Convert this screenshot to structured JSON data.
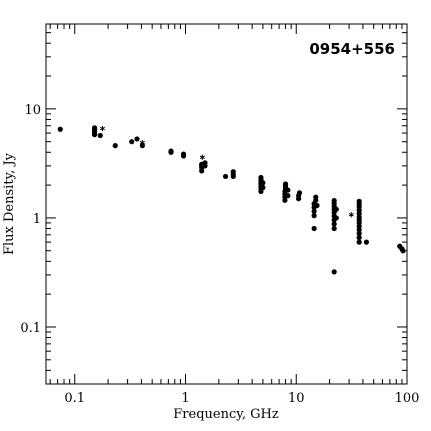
{
  "chart_data": {
    "type": "scatter",
    "title": "0954+556",
    "xlabel": "Frequency, GHz",
    "ylabel": "Flux Density, Jy",
    "xscale": "log",
    "yscale": "log",
    "xlim": [
      0.055,
      100
    ],
    "ylim": [
      0.03,
      60
    ],
    "grid": false,
    "x_tick_labels": [
      {
        "value": 0.1,
        "label": "0.1"
      },
      {
        "value": 1,
        "label": "1"
      },
      {
        "value": 10,
        "label": "10"
      },
      {
        "value": 100,
        "label": "100"
      }
    ],
    "y_tick_labels": [
      {
        "value": 0.1,
        "label": "0.1"
      },
      {
        "value": 1,
        "label": "1"
      },
      {
        "value": 10,
        "label": "10"
      }
    ],
    "series": [
      {
        "marker": "dot",
        "points": [
          [
            0.074,
            6.5
          ],
          [
            0.151,
            5.8
          ],
          [
            0.151,
            6.0
          ],
          [
            0.151,
            6.2
          ],
          [
            0.151,
            6.5
          ],
          [
            0.151,
            6.7
          ],
          [
            0.17,
            5.7
          ],
          [
            0.232,
            4.6
          ],
          [
            0.327,
            5.0
          ],
          [
            0.365,
            5.3
          ],
          [
            0.408,
            4.6
          ],
          [
            0.74,
            4.0
          ],
          [
            0.74,
            4.1
          ],
          [
            0.96,
            3.7
          ],
          [
            0.96,
            3.85
          ],
          [
            1.4,
            2.7
          ],
          [
            1.4,
            2.9
          ],
          [
            1.4,
            3.0
          ],
          [
            1.4,
            3.1
          ],
          [
            1.5,
            3.0
          ],
          [
            1.5,
            3.2
          ],
          [
            2.3,
            2.4
          ],
          [
            2.7,
            2.4
          ],
          [
            2.7,
            2.5
          ],
          [
            2.7,
            2.65
          ],
          [
            4.8,
            1.75
          ],
          [
            4.8,
            1.85
          ],
          [
            4.8,
            1.95
          ],
          [
            4.8,
            2.05
          ],
          [
            4.8,
            2.15
          ],
          [
            4.8,
            2.25
          ],
          [
            4.8,
            2.35
          ],
          [
            5.0,
            1.9
          ],
          [
            5.0,
            2.1
          ],
          [
            7.9,
            1.45
          ],
          [
            7.9,
            1.55
          ],
          [
            7.9,
            1.65
          ],
          [
            7.9,
            1.75
          ],
          [
            8.0,
            1.85
          ],
          [
            8.0,
            1.95
          ],
          [
            8.0,
            2.05
          ],
          [
            8.4,
            1.6
          ],
          [
            8.4,
            1.8
          ],
          [
            10.5,
            1.5
          ],
          [
            10.5,
            1.6
          ],
          [
            10.7,
            1.7
          ],
          [
            14.5,
            0.8
          ],
          [
            14.5,
            1.05
          ],
          [
            14.5,
            1.15
          ],
          [
            14.5,
            1.25
          ],
          [
            14.5,
            1.35
          ],
          [
            15.0,
            1.45
          ],
          [
            15.0,
            1.55
          ],
          [
            15.4,
            1.3
          ],
          [
            22.0,
            0.32
          ],
          [
            22.0,
            0.8
          ],
          [
            22.0,
            0.88
          ],
          [
            22.0,
            0.96
          ],
          [
            22.0,
            1.04
          ],
          [
            22.0,
            1.12
          ],
          [
            22.0,
            1.2
          ],
          [
            22.0,
            1.28
          ],
          [
            22.0,
            1.36
          ],
          [
            22.0,
            1.44
          ],
          [
            23.0,
            1.0
          ],
          [
            23.0,
            1.2
          ],
          [
            37.0,
            0.6
          ],
          [
            37.0,
            0.66
          ],
          [
            37.0,
            0.72
          ],
          [
            37.0,
            0.78
          ],
          [
            37.0,
            0.84
          ],
          [
            37.0,
            0.9
          ],
          [
            37.0,
            0.96
          ],
          [
            37.0,
            1.02
          ],
          [
            37.0,
            1.1
          ],
          [
            37.0,
            1.18
          ],
          [
            37.0,
            1.26
          ],
          [
            37.0,
            1.34
          ],
          [
            37.0,
            1.42
          ],
          [
            43.0,
            0.6
          ],
          [
            86.0,
            0.55
          ],
          [
            90.0,
            0.52
          ],
          [
            92.0,
            0.5
          ]
        ]
      },
      {
        "marker": "asterisk",
        "points": [
          [
            0.178,
            6.6
          ],
          [
            0.408,
            4.9
          ],
          [
            1.42,
            3.6
          ],
          [
            31.4,
            1.07
          ]
        ]
      }
    ]
  }
}
